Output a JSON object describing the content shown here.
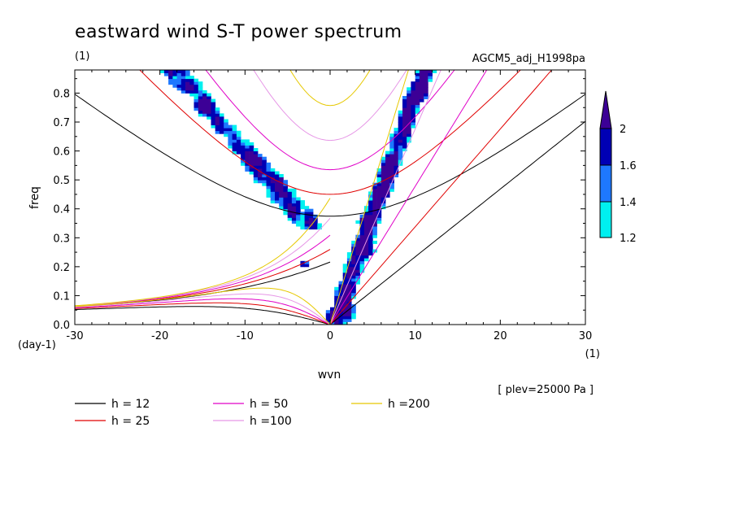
{
  "chart_data": {
    "type": "heatmap",
    "title": "eastward wind S-T power spectrum",
    "subtitle": "(1)",
    "dataset_label": "AGCM5_adj_H1998pa",
    "xlabel": "wvn",
    "ylabel": "freq",
    "x_unit": "(1)",
    "y_unit": "(day-1)",
    "footnote": "[ plev=25000 Pa ]",
    "xlim": [
      -30,
      30
    ],
    "ylim": [
      0.0,
      0.88
    ],
    "x_ticks": [
      -30,
      -20,
      -10,
      0,
      10,
      20,
      30
    ],
    "x_tick_labels": [
      "-30",
      "-20",
      "-10",
      "0",
      "10",
      "20",
      "30"
    ],
    "y_ticks": [
      0.0,
      0.1,
      0.2,
      0.3,
      0.4,
      0.5,
      0.6,
      0.7,
      0.8
    ],
    "y_tick_labels": [
      "0.0",
      "0.1",
      "0.2",
      "0.3",
      "0.4",
      "0.5",
      "0.6",
      "0.7",
      "0.8"
    ],
    "colorbar": {
      "levels": [
        1.2,
        1.4,
        1.6,
        2.0
      ],
      "level_labels": [
        "1.2",
        "1.4",
        "1.6",
        "2"
      ],
      "colors": [
        "#00f0f0",
        "#1e78ff",
        "#0000b4",
        "#3c0096"
      ]
    },
    "dispersion_curves": [
      {
        "name": "h = 12",
        "h": 12,
        "color": "#000000"
      },
      {
        "name": "h = 25",
        "h": 25,
        "color": "#e00000"
      },
      {
        "name": "h = 50",
        "h": 50,
        "color": "#e000c8"
      },
      {
        "name": "h =100",
        "h": 100,
        "color": "#e696e6"
      },
      {
        "name": "h =200",
        "h": 200,
        "color": "#e6c800"
      }
    ],
    "power_regions": [
      {
        "name": "kelvin-wave-band",
        "x_range": [
          0,
          11
        ],
        "freq_range": [
          0.0,
          0.88
        ],
        "max_level": 2.0
      },
      {
        "name": "westward-n1-band",
        "x_range": [
          -25,
          -4
        ],
        "freq_range": [
          0.35,
          0.88
        ],
        "max_level": 2.0
      },
      {
        "name": "low-frequency-westward",
        "x_range": [
          -3,
          0
        ],
        "freq_range": [
          0.0,
          0.22
        ],
        "max_level": 2.0
      }
    ]
  }
}
